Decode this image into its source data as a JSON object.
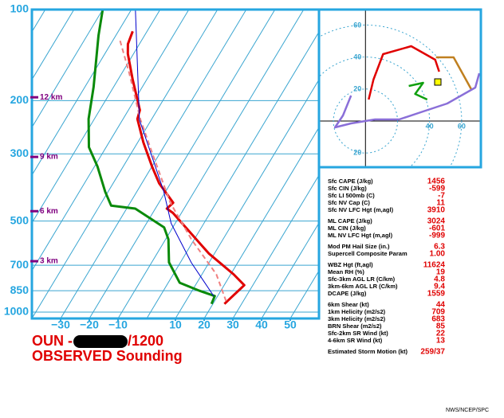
{
  "chart_data": {
    "type": "skewt",
    "title_station": "OUN -",
    "title_time": "/1200",
    "subtitle": "OBSERVED Sounding",
    "credit": "NWS/NCEP/SPC",
    "ylim": [
      100,
      1050
    ],
    "log_y": true,
    "yticks": [
      100,
      200,
      300,
      500,
      700,
      850,
      1000
    ],
    "xlim": [
      -40,
      60
    ],
    "xticks": [
      {
        "value": -30,
        "label": "−30"
      },
      {
        "value": -20,
        "label": "−20"
      },
      {
        "value": -10,
        "label": "−10"
      },
      10,
      20,
      30,
      40,
      50
    ],
    "grid": true,
    "series": [
      {
        "color": "#e00000",
        "width": 3,
        "dashed": false,
        "pressure": [
          940,
          815,
          750,
          640,
          470,
          455,
          435,
          375,
          330,
          275,
          230,
          215,
          170,
          140,
          130,
          118
        ],
        "values": [
          24,
          27,
          21,
          8,
          -13,
          -16,
          -15,
          -24,
          -30,
          -38,
          -45,
          -46,
          -55,
          -62,
          -64,
          -65
        ]
      },
      {
        "color": "#0a8a0a",
        "width": 3,
        "dashed": false,
        "pressure": [
          940,
          885,
          850,
          800,
          685,
          575,
          525,
          455,
          445,
          400,
          330,
          285,
          230,
          180,
          145,
          122,
          100
        ],
        "values": [
          19.5,
          19,
          12.5,
          4,
          -4,
          -9,
          -13,
          -27,
          -36,
          -41,
          -49,
          -56,
          -62,
          -67,
          -72,
          -76,
          -80
        ]
      },
      {
        "color": "#f08080",
        "width": 2,
        "dashed": true,
        "pressure": [
          920,
          750,
          575,
          435,
          310,
          230,
          160,
          125
        ],
        "values": [
          24,
          15,
          -1,
          -16,
          -31,
          -44,
          -58,
          -68
        ]
      },
      {
        "color": "#0000cc",
        "width": 1,
        "dashed": false,
        "pressure": [
          886,
          687,
          509,
          398,
          231,
          100
        ],
        "values": [
          18.7,
          3.9,
          -11.4,
          -20.8,
          -44.2,
          -68.6
        ]
      }
    ],
    "height_labels": [
      {
        "label": "12 km",
        "pressure": 195
      },
      {
        "label": "9 km",
        "pressure": 307
      },
      {
        "label": "6 km",
        "pressure": 464
      },
      {
        "label": "3 km",
        "pressure": 679
      }
    ],
    "hodograph": {
      "ulim": [
        -29,
        72
      ],
      "vlim": [
        -29,
        70
      ],
      "uticks": [
        40,
        60
      ],
      "vticks": [
        60,
        40,
        20,
        {
          "value": -20,
          "label": "20"
        }
      ],
      "segments": [
        {
          "color": "#e00000",
          "u": [
            2,
            5,
            11,
            28.5,
            43.5,
            46
          ],
          "v": [
            13.5,
            26,
            42,
            47,
            38.5,
            31
          ]
        },
        {
          "color": "#c08020",
          "u": [
            44,
            55,
            66
          ],
          "v": [
            40,
            40,
            20
          ]
        },
        {
          "color": "#10a010",
          "u": [
            27,
            36,
            31,
            38.5
          ],
          "v": [
            22,
            24,
            17,
            13.5
          ]
        },
        {
          "color": "#8a6fd8",
          "u": [
            71,
            68.5,
            51,
            36,
            21,
            6,
            -9,
            -19,
            -14,
            -9
          ],
          "v": [
            30,
            21,
            11,
            6,
            1,
            1,
            -1.5,
            -4,
            3.5,
            16
          ]
        }
      ]
    },
    "stats": [
      [
        {
          "label": "Sfc CAPE (J/kg)",
          "value": "1456"
        },
        {
          "label": "Sfc CIN (J/kg)",
          "value": "-599"
        },
        {
          "label": "Sfc LI 500mb (C)",
          "value": "-7"
        },
        {
          "label": "Sfc NV Cap (C)",
          "value": "11"
        },
        {
          "label": "Sfc NV LFC Hgt (m,agl)",
          "value": "3910"
        }
      ],
      [
        {
          "label": "ML CAPE (J/kg)",
          "value": "3024"
        },
        {
          "label": "ML CIN (J/kg)",
          "value": "-601"
        },
        {
          "label": "ML NV LFC Hgt (m,agl)",
          "value": "-999"
        }
      ],
      [
        {
          "label": "Mod PM Hail Size (in.)",
          "value": "6.3"
        },
        {
          "label": "Supercell Composite Param",
          "value": "1.00"
        }
      ],
      [
        {
          "label": "WBZ Hgt (ft,agl)",
          "value": "11624"
        },
        {
          "label": "Mean RH (%)",
          "value": "19"
        },
        {
          "label": "Sfc-3km AGL LR (C/km)",
          "value": "4.8"
        },
        {
          "label": "3km-6km AGL LR (C/km)",
          "value": "9.4"
        },
        {
          "label": "DCAPE (J/kg)",
          "value": "1559"
        }
      ],
      [
        {
          "label": "6km Shear (kt)",
          "value": "44"
        },
        {
          "label": "1km Helicity (m2/s2)",
          "value": "709"
        },
        {
          "label": "3km Helicity (m2/s2)",
          "value": "683"
        },
        {
          "label": "BRN Shear (m2/s2)",
          "value": "85"
        },
        {
          "label": "Sfc-2km SR Wind (kt)",
          "value": "22"
        },
        {
          "label": "4-6km SR Wind (kt)",
          "value": "13"
        }
      ],
      [
        {
          "label": "Estimated Storm Motion (kt)",
          "value": "259/37"
        }
      ]
    ]
  }
}
